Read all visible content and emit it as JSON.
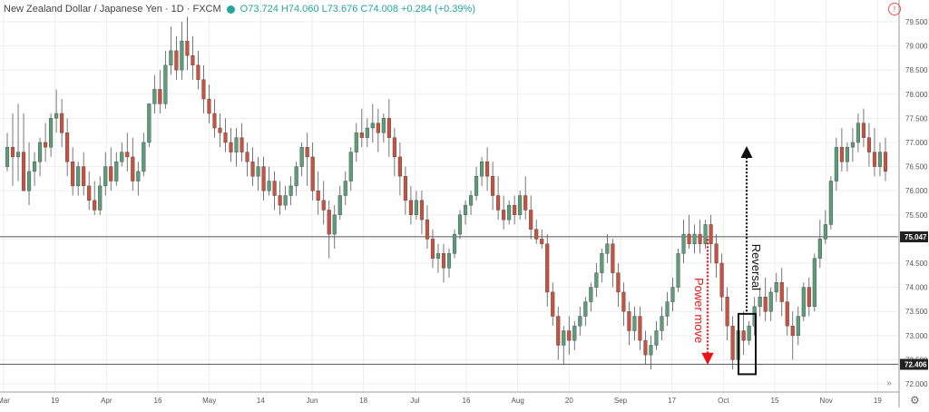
{
  "header": {
    "symbol_text": "New Zealand Dollar / Japanese Yen · 1D · FXCM",
    "ohlc_text": "O73.724  H74.060  L73.676  C74.008  +0.284 (+0.39%)"
  },
  "colors": {
    "up": "#5b9c7b",
    "down": "#c8523e",
    "grid": "#eeeeee",
    "level": "#555555",
    "annotation_red": "#ee1111",
    "annotation_black": "#111111"
  },
  "price_axis": {
    "labels": [
      "79.500",
      "79.000",
      "78.500",
      "78.000",
      "77.500",
      "77.000",
      "76.500",
      "76.000",
      "75.500",
      "75.000",
      "74.500",
      "74.000",
      "73.500",
      "73.000",
      "72.500",
      "72.000"
    ],
    "tag_upper": "75.047",
    "tag_lower": "72.406"
  },
  "time_axis": {
    "labels": [
      "Mar",
      "19",
      "Apr",
      "16",
      "May",
      "14",
      "Jun",
      "18",
      "Jul",
      "16",
      "Aug",
      "20",
      "Sep",
      "17",
      "Oct",
      "15",
      "Nov",
      "19"
    ]
  },
  "annotations": {
    "power_move": "Power move",
    "reversal": "Reversal"
  },
  "chart_data": {
    "type": "candlestick",
    "title": "New Zealand Dollar / Japanese Yen · 1D · FXCM",
    "ylim": [
      71.85,
      79.95
    ],
    "horizontal_levels": [
      75.047,
      72.406
    ],
    "candles": [
      [
        76.5,
        77.2,
        76.9,
        76.4
      ],
      [
        76.9,
        77.6,
        76.7,
        76.1
      ],
      [
        76.7,
        77.8,
        76.8,
        76.2
      ],
      [
        76.8,
        77.6,
        76.0,
        76.1
      ],
      [
        76.0,
        77.0,
        76.4,
        75.7
      ],
      [
        76.4,
        76.8,
        76.6,
        76.1
      ],
      [
        76.6,
        77.1,
        77.0,
        76.3
      ],
      [
        77.0,
        77.4,
        76.9,
        76.6
      ],
      [
        76.9,
        77.6,
        77.5,
        76.7
      ],
      [
        77.5,
        78.1,
        77.6,
        77.2
      ],
      [
        77.6,
        77.9,
        77.2,
        76.9
      ],
      [
        77.2,
        77.5,
        76.6,
        76.3
      ],
      [
        76.6,
        76.9,
        76.1,
        75.9
      ],
      [
        76.1,
        76.6,
        76.5,
        75.9
      ],
      [
        76.5,
        76.8,
        76.1,
        75.9
      ],
      [
        76.1,
        76.4,
        75.8,
        75.6
      ],
      [
        75.8,
        76.2,
        75.6,
        75.5
      ],
      [
        75.6,
        76.3,
        76.1,
        75.5
      ],
      [
        76.1,
        76.8,
        76.5,
        75.9
      ],
      [
        76.5,
        76.9,
        76.2,
        76.0
      ],
      [
        76.2,
        76.8,
        76.6,
        76.1
      ],
      [
        76.6,
        77.0,
        76.8,
        76.5
      ],
      [
        76.8,
        77.2,
        76.7,
        76.4
      ],
      [
        76.7,
        77.1,
        76.2,
        76.0
      ],
      [
        76.2,
        76.6,
        76.4,
        75.9
      ],
      [
        76.4,
        77.2,
        77.0,
        76.3
      ],
      [
        77.0,
        77.8,
        77.8,
        76.9
      ],
      [
        77.8,
        78.4,
        78.1,
        77.6
      ],
      [
        78.1,
        78.5,
        77.8,
        77.6
      ],
      [
        77.8,
        78.9,
        78.6,
        77.7
      ],
      [
        78.6,
        79.4,
        78.9,
        78.4
      ],
      [
        78.9,
        79.2,
        78.5,
        78.3
      ],
      [
        78.5,
        79.5,
        79.1,
        78.3
      ],
      [
        79.1,
        79.6,
        78.8,
        78.5
      ],
      [
        78.8,
        79.2,
        78.6,
        78.3
      ],
      [
        78.6,
        78.9,
        78.3,
        78.1
      ],
      [
        78.3,
        78.6,
        77.9,
        77.6
      ],
      [
        77.9,
        78.2,
        77.6,
        77.4
      ],
      [
        77.6,
        77.9,
        77.3,
        77.1
      ],
      [
        77.3,
        77.6,
        77.2,
        76.9
      ],
      [
        77.2,
        77.5,
        77.0,
        76.8
      ],
      [
        77.0,
        77.3,
        76.8,
        76.6
      ],
      [
        76.8,
        77.3,
        77.1,
        76.5
      ],
      [
        77.1,
        77.4,
        76.8,
        76.6
      ],
      [
        76.8,
        77.0,
        76.6,
        76.3
      ],
      [
        76.6,
        76.9,
        76.3,
        76.1
      ],
      [
        76.3,
        76.7,
        76.5,
        76.0
      ],
      [
        76.5,
        76.7,
        76.0,
        75.8
      ],
      [
        76.0,
        76.5,
        76.2,
        75.9
      ],
      [
        76.2,
        76.4,
        75.9,
        75.6
      ],
      [
        75.9,
        76.2,
        75.7,
        75.5
      ],
      [
        75.7,
        76.1,
        75.9,
        75.6
      ],
      [
        75.9,
        76.3,
        76.1,
        75.7
      ],
      [
        76.1,
        76.6,
        76.5,
        75.9
      ],
      [
        76.5,
        77.0,
        76.9,
        76.3
      ],
      [
        76.9,
        77.2,
        76.7,
        76.1
      ],
      [
        76.7,
        77.0,
        76.0,
        75.8
      ],
      [
        76.0,
        76.4,
        75.8,
        75.5
      ],
      [
        75.8,
        76.2,
        75.6,
        75.3
      ],
      [
        75.6,
        75.8,
        75.1,
        74.6
      ],
      [
        75.1,
        75.7,
        75.5,
        74.8
      ],
      [
        75.5,
        76.1,
        75.9,
        75.4
      ],
      [
        75.9,
        76.4,
        76.2,
        75.7
      ],
      [
        76.2,
        76.9,
        76.8,
        76.0
      ],
      [
        76.8,
        77.4,
        77.2,
        76.6
      ],
      [
        77.2,
        77.7,
        77.1,
        76.9
      ],
      [
        77.1,
        77.5,
        77.3,
        76.9
      ],
      [
        77.3,
        77.8,
        77.4,
        77.0
      ],
      [
        77.4,
        77.7,
        77.2,
        76.8
      ],
      [
        77.2,
        77.6,
        77.5,
        77.0
      ],
      [
        77.5,
        77.9,
        77.1,
        76.7
      ],
      [
        77.1,
        77.3,
        76.7,
        76.3
      ],
      [
        76.7,
        77.0,
        76.3,
        75.9
      ],
      [
        76.3,
        76.5,
        75.8,
        75.5
      ],
      [
        75.8,
        76.1,
        75.5,
        75.3
      ],
      [
        75.5,
        76.0,
        75.8,
        75.4
      ],
      [
        75.8,
        76.0,
        75.4,
        75.1
      ],
      [
        75.4,
        75.7,
        75.0,
        74.8
      ],
      [
        75.0,
        75.2,
        74.6,
        74.4
      ],
      [
        74.6,
        74.9,
        74.7,
        74.3
      ],
      [
        74.7,
        74.9,
        74.4,
        74.1
      ],
      [
        74.4,
        74.8,
        74.7,
        74.2
      ],
      [
        74.7,
        75.2,
        75.1,
        74.6
      ],
      [
        75.1,
        75.6,
        75.5,
        75.0
      ],
      [
        75.5,
        75.8,
        75.7,
        75.3
      ],
      [
        75.7,
        76.0,
        75.9,
        75.5
      ],
      [
        75.9,
        76.5,
        76.3,
        75.8
      ],
      [
        76.3,
        76.7,
        76.6,
        76.1
      ],
      [
        76.6,
        76.9,
        76.3,
        76.0
      ],
      [
        76.3,
        76.6,
        75.9,
        75.6
      ],
      [
        75.9,
        76.3,
        75.6,
        75.4
      ],
      [
        75.6,
        75.9,
        75.4,
        75.2
      ],
      [
        75.4,
        75.8,
        75.7,
        75.3
      ],
      [
        75.7,
        75.9,
        75.5,
        75.3
      ],
      [
        75.5,
        76.0,
        75.9,
        75.4
      ],
      [
        75.9,
        76.3,
        75.6,
        75.4
      ],
      [
        75.6,
        75.9,
        75.2,
        75.0
      ],
      [
        75.2,
        75.4,
        75.0,
        74.9
      ],
      [
        75.0,
        75.2,
        74.9,
        74.8
      ],
      [
        74.9,
        75.1,
        73.9,
        73.6
      ],
      [
        73.9,
        74.1,
        73.4,
        73.2
      ],
      [
        73.4,
        73.6,
        72.8,
        72.5
      ],
      [
        72.8,
        73.2,
        73.1,
        72.4
      ],
      [
        73.1,
        73.4,
        72.9,
        72.6
      ],
      [
        72.9,
        73.3,
        73.2,
        72.7
      ],
      [
        73.2,
        73.6,
        73.4,
        73.0
      ],
      [
        73.4,
        73.8,
        73.7,
        73.2
      ],
      [
        73.7,
        74.1,
        74.0,
        73.5
      ],
      [
        74.0,
        74.5,
        74.3,
        73.8
      ],
      [
        74.3,
        74.8,
        74.7,
        74.1
      ],
      [
        74.7,
        75.1,
        74.9,
        74.5
      ],
      [
        74.9,
        75.0,
        74.3,
        74.0
      ],
      [
        74.3,
        74.5,
        73.9,
        73.6
      ],
      [
        73.9,
        74.1,
        73.5,
        73.2
      ],
      [
        73.5,
        73.7,
        73.1,
        72.8
      ],
      [
        73.1,
        73.6,
        73.4,
        72.9
      ],
      [
        73.4,
        73.6,
        72.9,
        72.7
      ],
      [
        72.9,
        73.1,
        72.6,
        72.4
      ],
      [
        72.6,
        73.0,
        72.8,
        72.3
      ],
      [
        72.8,
        73.3,
        73.1,
        72.7
      ],
      [
        73.1,
        73.6,
        73.4,
        72.9
      ],
      [
        73.4,
        73.9,
        73.7,
        73.2
      ],
      [
        73.7,
        74.2,
        74.0,
        73.5
      ],
      [
        74.0,
        74.8,
        74.7,
        73.9
      ],
      [
        74.7,
        75.4,
        75.1,
        74.5
      ],
      [
        75.1,
        75.5,
        74.9,
        74.8
      ],
      [
        74.9,
        75.3,
        75.1,
        74.7
      ],
      [
        75.1,
        75.4,
        74.9,
        74.7
      ],
      [
        74.9,
        75.4,
        75.3,
        74.8
      ],
      [
        75.3,
        75.5,
        74.9,
        74.5
      ],
      [
        74.9,
        75.1,
        74.5,
        74.2
      ],
      [
        74.5,
        74.7,
        73.8,
        73.5
      ],
      [
        73.8,
        74.0,
        73.2,
        72.9
      ],
      [
        73.2,
        73.4,
        72.5,
        72.3
      ],
      [
        72.5,
        73.3,
        73.1,
        72.4
      ],
      [
        73.1,
        73.5,
        72.9,
        72.6
      ],
      [
        72.9,
        73.3,
        73.2,
        72.8
      ],
      [
        73.2,
        73.8,
        73.6,
        73.0
      ],
      [
        73.6,
        74.0,
        73.8,
        73.4
      ],
      [
        73.8,
        74.2,
        73.5,
        73.3
      ],
      [
        73.5,
        74.0,
        73.9,
        73.3
      ],
      [
        73.9,
        74.3,
        74.1,
        73.7
      ],
      [
        74.1,
        74.4,
        73.7,
        73.4
      ],
      [
        73.7,
        74.0,
        73.2,
        73.0
      ],
      [
        73.2,
        73.5,
        73.0,
        72.5
      ],
      [
        73.0,
        73.6,
        73.4,
        72.8
      ],
      [
        73.4,
        74.1,
        74.0,
        73.3
      ],
      [
        74.0,
        74.2,
        73.6,
        73.4
      ],
      [
        73.6,
        74.7,
        74.6,
        73.5
      ],
      [
        74.6,
        75.4,
        75.0,
        74.4
      ],
      [
        75.0,
        75.6,
        75.3,
        74.9
      ],
      [
        75.3,
        76.3,
        76.2,
        75.2
      ],
      [
        76.2,
        77.1,
        76.9,
        76.0
      ],
      [
        76.9,
        77.3,
        76.6,
        76.4
      ],
      [
        76.6,
        77.0,
        76.9,
        76.4
      ],
      [
        76.9,
        77.3,
        77.0,
        76.6
      ],
      [
        77.0,
        77.6,
        77.4,
        76.8
      ],
      [
        77.4,
        77.7,
        77.1,
        76.9
      ],
      [
        77.1,
        77.4,
        76.8,
        76.5
      ],
      [
        76.8,
        77.3,
        76.5,
        76.3
      ],
      [
        76.5,
        77.0,
        76.8,
        76.3
      ],
      [
        76.8,
        77.1,
        76.4,
        76.2
      ]
    ]
  }
}
